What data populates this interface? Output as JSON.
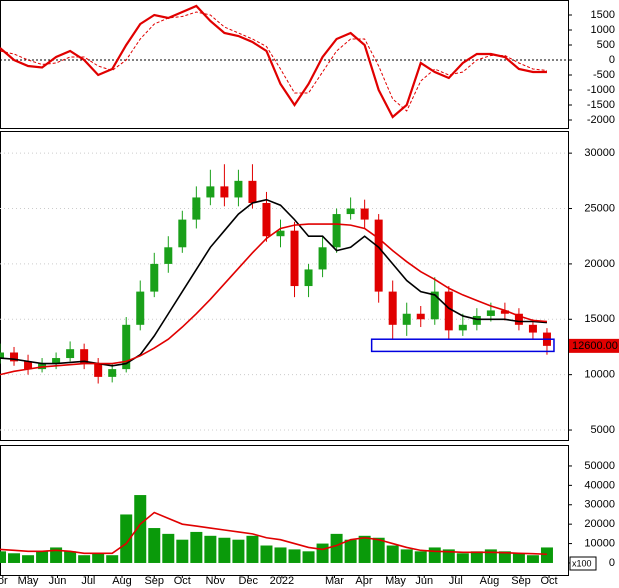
{
  "chart_data": [
    {
      "type": "line",
      "zero_line": true,
      "x": [
        0,
        2,
        4,
        6,
        8,
        10,
        12,
        14,
        16,
        18,
        20,
        22,
        24,
        26,
        28,
        30,
        32,
        34,
        36,
        38,
        40,
        42,
        44,
        46,
        48,
        50,
        52,
        54,
        56,
        58,
        60,
        62,
        64,
        66,
        68,
        70,
        72,
        74,
        76,
        78
      ],
      "xlim": [
        0,
        81
      ],
      "ylim": [
        -2267,
        2000
      ],
      "yticks": [
        1500,
        1000,
        500,
        0,
        -500,
        -1000,
        -1500,
        -2000
      ],
      "series": [
        {
          "color": "#e00000",
          "style": "solid",
          "values": [
            400,
            0,
            -200,
            -250,
            100,
            300,
            0,
            -500,
            -300,
            500,
            1200,
            1500,
            1400,
            1600,
            1800,
            1300,
            900,
            800,
            600,
            300,
            -800,
            -1500,
            -800,
            100,
            700,
            900,
            500,
            -1000,
            -1900,
            -1500,
            -100,
            -400,
            -600,
            -100,
            200,
            200,
            100,
            -300,
            -400,
            -400
          ]
        },
        {
          "color": "#e00000",
          "style": "dashed",
          "values": [
            300,
            200,
            0,
            -150,
            -100,
            100,
            100,
            -200,
            -350,
            0,
            700,
            1200,
            1400,
            1450,
            1600,
            1500,
            1100,
            900,
            700,
            450,
            -300,
            -1100,
            -1100,
            -400,
            300,
            700,
            700,
            -200,
            -1300,
            -1700,
            -700,
            -300,
            -500,
            -400,
            0,
            150,
            150,
            -100,
            -300,
            -350
          ]
        }
      ]
    },
    {
      "type": "candlestick",
      "grid": true,
      "up_color": "#1aa01a",
      "down_color": "#e00000",
      "x": [
        0,
        2,
        4,
        6,
        8,
        10,
        12,
        14,
        16,
        18,
        20,
        22,
        24,
        26,
        28,
        30,
        32,
        34,
        36,
        38,
        40,
        42,
        44,
        46,
        48,
        50,
        52,
        54,
        56,
        58,
        60,
        62,
        64,
        66,
        68,
        70,
        72,
        74,
        76,
        78
      ],
      "xlim": [
        0,
        81
      ],
      "ylim": [
        4100,
        32000
      ],
      "yticks": [
        30000,
        25000,
        20000,
        15000,
        10000,
        5000
      ],
      "open": [
        11500,
        12000,
        11200,
        10500,
        11000,
        11500,
        12300,
        11000,
        9800,
        10500,
        14500,
        17500,
        20000,
        21500,
        24000,
        26000,
        27000,
        26000,
        27500,
        25500,
        22500,
        23000,
        18000,
        19500,
        21500,
        24500,
        25000,
        24000,
        17500,
        14500,
        15500,
        15000,
        17500,
        14000,
        14500,
        15300,
        15800,
        15500,
        14500,
        13800
      ],
      "high": [
        12800,
        12500,
        11800,
        11500,
        12000,
        13000,
        12800,
        11500,
        11000,
        15200,
        18500,
        21000,
        22500,
        24800,
        27000,
        28500,
        29000,
        28500,
        29000,
        26500,
        24000,
        23800,
        20000,
        22500,
        25000,
        26000,
        25800,
        24500,
        18500,
        16500,
        16200,
        18800,
        18000,
        15500,
        16000,
        16500,
        16500,
        16000,
        15000,
        14200
      ],
      "low": [
        11000,
        10800,
        10000,
        10200,
        10500,
        11200,
        10500,
        9200,
        9300,
        10200,
        14000,
        17000,
        19200,
        21000,
        23200,
        25300,
        25200,
        25200,
        25000,
        22000,
        21500,
        17000,
        17000,
        18800,
        21000,
        24000,
        23200,
        16500,
        13200,
        13500,
        14300,
        14500,
        13200,
        13500,
        14000,
        14800,
        14900,
        14000,
        13200,
        11800
      ],
      "close": [
        12000,
        11200,
        10500,
        11000,
        11500,
        12300,
        11000,
        9800,
        10500,
        14500,
        17500,
        20000,
        21500,
        24000,
        26000,
        27000,
        26000,
        27500,
        25500,
        22500,
        23000,
        18000,
        19500,
        21500,
        24500,
        25000,
        24000,
        17500,
        14500,
        15500,
        15000,
        17500,
        14000,
        14500,
        15300,
        15800,
        15500,
        14500,
        13800,
        12600
      ],
      "series": [
        {
          "color": "#000000",
          "values": [
            11500,
            11400,
            11200,
            11000,
            11000,
            11100,
            11200,
            11000,
            10800,
            11000,
            11800,
            13500,
            15500,
            17500,
            19500,
            21500,
            23000,
            24500,
            25500,
            25800,
            25300,
            24000,
            22500,
            22500,
            21200,
            21500,
            22500,
            21500,
            20000,
            18500,
            17500,
            17200,
            16000,
            15300,
            15000,
            15000,
            15000,
            14800,
            14800,
            14700
          ]
        },
        {
          "color": "#e00000",
          "values": [
            10000,
            10300,
            10500,
            10700,
            10800,
            10900,
            11000,
            11000,
            11000,
            11200,
            11700,
            12400,
            13200,
            14300,
            15500,
            16800,
            18200,
            19600,
            21000,
            22300,
            23200,
            23500,
            23600,
            23600,
            23600,
            23500,
            23200,
            22300,
            21200,
            20200,
            19300,
            18600,
            17800,
            17200,
            16700,
            16200,
            15800,
            15300,
            14900,
            14800
          ]
        }
      ],
      "last_price": 12600,
      "last_price_label": "12600.00",
      "support_box": {
        "x": [
          53,
          79
        ],
        "y": [
          12100,
          13200
        ],
        "color": "#0000e0"
      }
    },
    {
      "type": "bar",
      "color": "#0a9a0a",
      "x": [
        0,
        2,
        4,
        6,
        8,
        10,
        12,
        14,
        16,
        18,
        20,
        22,
        24,
        26,
        28,
        30,
        32,
        34,
        36,
        38,
        40,
        42,
        44,
        46,
        48,
        50,
        52,
        54,
        56,
        58,
        60,
        62,
        64,
        66,
        68,
        70,
        72,
        74,
        76,
        78
      ],
      "xlim": [
        0,
        81
      ],
      "ylim": [
        -6200,
        60800
      ],
      "yticks": [
        50000,
        40000,
        30000,
        20000,
        10000,
        0
      ],
      "unit_label": "x100",
      "values": [
        6000,
        5000,
        4000,
        6000,
        8000,
        6000,
        4000,
        5000,
        4000,
        25000,
        35000,
        18000,
        15000,
        12000,
        16000,
        14000,
        13000,
        12000,
        14000,
        9000,
        8000,
        7000,
        6000,
        10000,
        15000,
        12000,
        14000,
        13000,
        9000,
        7000,
        6000,
        8000,
        7000,
        5000,
        6000,
        7000,
        6000,
        5000,
        4000,
        8000
      ],
      "series": [
        {
          "color": "#e00000",
          "values": [
            7000,
            6500,
            6000,
            6000,
            6500,
            6000,
            5000,
            5000,
            5000,
            10000,
            20000,
            26000,
            23000,
            20000,
            19000,
            18000,
            17000,
            16000,
            15000,
            13000,
            12000,
            10000,
            8000,
            7000,
            9000,
            12000,
            13000,
            12000,
            10000,
            8000,
            6500,
            6000,
            5800,
            5500,
            5500,
            5500,
            5300,
            5000,
            4800,
            4500
          ]
        }
      ],
      "xticks": [
        {
          "value": 0.4,
          "label": "or"
        },
        {
          "value": 4,
          "label": "May"
        },
        {
          "value": 8.2,
          "label": "Jun"
        },
        {
          "value": 12.6,
          "label": "Jul"
        },
        {
          "value": 17.4,
          "label": "Aug"
        },
        {
          "value": 22,
          "label": "Sep"
        },
        {
          "value": 26,
          "label": "Oct"
        },
        {
          "value": 30.7,
          "label": "Nov"
        },
        {
          "value": 35.4,
          "label": "Dec"
        },
        {
          "value": 40.2,
          "label": "2022"
        },
        {
          "value": 47.7,
          "label": "Mar"
        },
        {
          "value": 51.9,
          "label": "Apr"
        },
        {
          "value": 56.4,
          "label": "May"
        },
        {
          "value": 60.5,
          "label": "Jun"
        },
        {
          "value": 65,
          "label": "Jul"
        },
        {
          "value": 69.8,
          "label": "Aug"
        },
        {
          "value": 74.3,
          "label": "Sep"
        },
        {
          "value": 78.3,
          "label": "Oct"
        }
      ]
    }
  ]
}
